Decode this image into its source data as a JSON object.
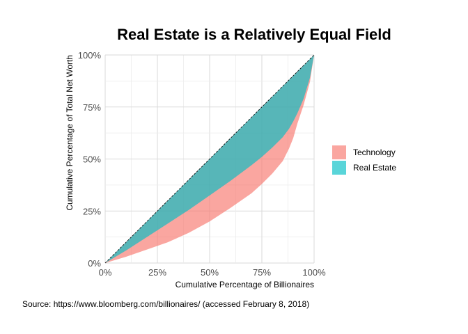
{
  "chart_data": {
    "type": "area",
    "title": "Real Estate is a Relatively Equal Field",
    "xlabel": "Cumulative Percentage of Billionaires",
    "ylabel": "Cumulative Percentage of Total Net Worth",
    "caption": "Source: https://www.bloomberg.com/billionaires/ (accessed February 8, 2018)",
    "xlim": [
      0,
      1
    ],
    "ylim": [
      0,
      1
    ],
    "x_ticks": [
      "0%",
      "25%",
      "50%",
      "75%",
      "100%"
    ],
    "y_ticks": [
      "0%",
      "25%",
      "50%",
      "75%",
      "100%"
    ],
    "grid": true,
    "legend_position": "right",
    "equality_line": true,
    "series": [
      {
        "name": "Technology",
        "color": "#F8766D",
        "x": [
          0,
          0.1,
          0.2,
          0.3,
          0.4,
          0.5,
          0.6,
          0.7,
          0.75,
          0.8,
          0.85,
          0.88,
          0.9,
          0.92,
          0.95,
          0.98,
          1.0
        ],
        "y": [
          0,
          0.03,
          0.065,
          0.1,
          0.145,
          0.2,
          0.265,
          0.335,
          0.38,
          0.43,
          0.49,
          0.55,
          0.6,
          0.67,
          0.76,
          0.87,
          1.0
        ]
      },
      {
        "name": "Real Estate",
        "color": "#00BFC4",
        "x": [
          0,
          0.1,
          0.2,
          0.3,
          0.4,
          0.5,
          0.6,
          0.7,
          0.75,
          0.8,
          0.85,
          0.88,
          0.9,
          0.92,
          0.95,
          0.98,
          1.0
        ],
        "y": [
          0,
          0.06,
          0.125,
          0.19,
          0.255,
          0.325,
          0.395,
          0.47,
          0.51,
          0.555,
          0.605,
          0.645,
          0.68,
          0.72,
          0.79,
          0.89,
          1.0
        ]
      }
    ]
  }
}
